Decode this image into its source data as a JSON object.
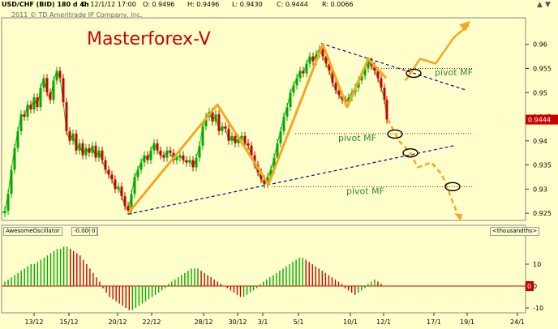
{
  "header": {
    "symbol": "USD/CHF (BID) 180 d 4h",
    "datetime": "D: 12/1/12 17:00",
    "open": "O: 0.9496",
    "high": "H: 0.9496",
    "low": "L: 0.9430",
    "close": "C: 0.9444",
    "range": "R: 0.0066",
    "copyright": "2011 © TD Ameritrade IP Company, Inc.",
    "scroll_up": "▲",
    "scroll_down": "▼"
  },
  "chart_data": [
    {
      "type": "candlestick",
      "title": "Masterforex-V",
      "ylim": [
        0.9235,
        0.9655
      ],
      "y_ticks": [
        "0.96",
        "0.955",
        "0.95",
        "0.945",
        "0.94",
        "0.935",
        "0.93",
        "0.925"
      ],
      "x_ticks": [
        "13/12",
        "15/12",
        "20/12",
        "22/12",
        "28/12",
        "30/12",
        "3/1",
        "5/1",
        "10/1",
        "12/1",
        "17/1",
        "19/1",
        "24/1"
      ],
      "last_price_label": "0.9444",
      "annotations": [
        "pivot MF",
        "pivot MF",
        "pivot MF"
      ],
      "trend_path_points": [
        {
          "x": "20/12",
          "y": 0.925
        },
        {
          "x": "28/12",
          "y": 0.9475
        },
        {
          "x": "3/1",
          "y": 0.931
        },
        {
          "x": "5/1",
          "y": 0.96
        },
        {
          "x": "10/1",
          "y": 0.947
        },
        {
          "x": "11/1",
          "y": 0.957
        },
        {
          "x": "12/1",
          "y": 0.953
        }
      ],
      "pivot_levels": [
        0.955,
        0.9415,
        0.9305
      ]
    },
    {
      "type": "bar",
      "title": "AwesomeOscillator",
      "value_label": "-0.0002",
      "extra_label": "0",
      "units_label": "<thousandths>",
      "y_ticks": [
        "10",
        "0",
        "-10"
      ],
      "current_value_label": "0"
    }
  ],
  "colors": {
    "background": "#ffffcc",
    "candle_up": "#00aa00",
    "candle_down": "#cc0000",
    "pattern": "#f5a623",
    "trendline": "#1a1a8c",
    "pivot_line": "#cc0000",
    "title": "#cc0000",
    "pivot_text": "#2e8b2e"
  }
}
